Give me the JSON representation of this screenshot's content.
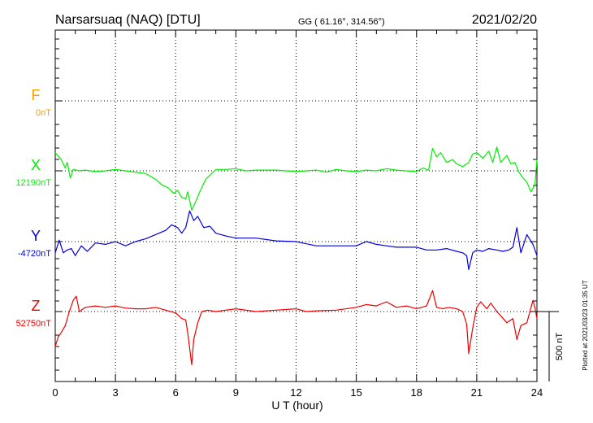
{
  "chart_data": {
    "type": "line",
    "title": "Narsarsuaq (NAQ)  [DTU]",
    "coordinates": "GG ( 61.16°, 314.56°)",
    "date": "2021/02/20",
    "xlabel": "U T (hour)",
    "xlim": [
      0,
      24
    ],
    "x_ticks": [
      "0",
      "3",
      "6",
      "9",
      "12",
      "15",
      "18",
      "21",
      "24"
    ],
    "grid": true,
    "plotted_note": "Plotted at 2021/03/23 01:35 UT",
    "scale_label": "500 nT",
    "series": [
      {
        "name": "F",
        "baseline_label": "0nT",
        "color": "#f5a000",
        "draw": false,
        "x": [],
        "y": []
      },
      {
        "name": "X",
        "baseline_label": "12190nT",
        "color": "#00ee00",
        "draw": true,
        "x": [
          0,
          0.3,
          0.5,
          0.6,
          0.75,
          0.9,
          1.2,
          1.5,
          2,
          2.5,
          3,
          3.5,
          4,
          4.5,
          5,
          5.3,
          5.6,
          5.9,
          6.1,
          6.3,
          6.5,
          6.6,
          6.8,
          7,
          7.2,
          7.5,
          7.8,
          8,
          8.5,
          9,
          9.5,
          10,
          11,
          12,
          12.5,
          13,
          13.5,
          14,
          14.5,
          15,
          15.5,
          16,
          16.5,
          17,
          17.5,
          18,
          18.3,
          18.6,
          18.8,
          19,
          19.2,
          19.5,
          19.8,
          20,
          20.3,
          20.6,
          20.8,
          21,
          21.3,
          21.6,
          21.8,
          22,
          22.2,
          22.5,
          22.7,
          22.9,
          23.1,
          23.3,
          23.5,
          23.7,
          23.9,
          24
        ],
        "y": [
          130,
          80,
          20,
          60,
          -50,
          10,
          0,
          5,
          -5,
          0,
          10,
          0,
          -10,
          -20,
          -60,
          -100,
          -120,
          -160,
          -140,
          -190,
          -200,
          -150,
          -280,
          -220,
          -150,
          -60,
          -20,
          10,
          10,
          15,
          0,
          5,
          5,
          -5,
          0,
          5,
          -10,
          10,
          0,
          -5,
          5,
          0,
          15,
          5,
          0,
          -5,
          20,
          5,
          160,
          100,
          130,
          60,
          80,
          50,
          30,
          60,
          120,
          130,
          90,
          140,
          60,
          170,
          60,
          110,
          50,
          60,
          -10,
          -50,
          -80,
          -150,
          -100,
          80
        ]
      },
      {
        "name": "Y",
        "baseline_label": "-4720nT",
        "color": "#0000dd",
        "draw": true,
        "x": [
          0,
          0.2,
          0.4,
          0.6,
          0.8,
          1,
          1.3,
          1.6,
          2,
          2.5,
          3,
          3.5,
          4,
          4.5,
          5,
          5.5,
          5.8,
          6.1,
          6.3,
          6.5,
          6.7,
          6.9,
          7.1,
          7.4,
          7.7,
          8,
          8.5,
          9,
          10,
          11,
          12,
          13,
          14,
          15,
          15.5,
          16,
          16.5,
          17,
          18,
          18.5,
          19,
          19.5,
          20,
          20.3,
          20.5,
          20.6,
          20.8,
          21,
          21.3,
          21.6,
          22,
          22.3,
          22.6,
          22.8,
          23,
          23.2,
          23.5,
          23.8,
          24
        ],
        "y": [
          -80,
          10,
          -80,
          -60,
          -50,
          -100,
          -30,
          -70,
          -10,
          -20,
          0,
          -30,
          0,
          20,
          50,
          80,
          120,
          100,
          60,
          100,
          220,
          150,
          180,
          100,
          110,
          60,
          40,
          25,
          25,
          5,
          0,
          -30,
          -30,
          -30,
          0,
          -20,
          -30,
          -40,
          -40,
          -60,
          -60,
          -50,
          -70,
          -80,
          -100,
          -200,
          -80,
          -60,
          -70,
          -50,
          -60,
          -70,
          -60,
          -40,
          100,
          -80,
          50,
          -20,
          -100
        ]
      },
      {
        "name": "Z",
        "baseline_label": "52750nT",
        "color": "#ee0000",
        "draw": true,
        "x": [
          0,
          0.15,
          0.3,
          0.5,
          0.7,
          0.9,
          1.05,
          1.2,
          1.5,
          2,
          2.5,
          3,
          3.5,
          4,
          4.5,
          5,
          5.5,
          6,
          6.3,
          6.5,
          6.6,
          6.8,
          6.9,
          7.1,
          7.3,
          7.6,
          8,
          9,
          10,
          11,
          12,
          12.5,
          13,
          14,
          15,
          15.5,
          16,
          16.5,
          17,
          17.5,
          18,
          18.5,
          18.8,
          19,
          19.3,
          19.6,
          20,
          20.3,
          20.5,
          20.6,
          20.8,
          21,
          21.2,
          21.5,
          21.7,
          22,
          22.2,
          22.5,
          22.8,
          23,
          23.2,
          23.5,
          23.8,
          23.9,
          24
        ],
        "y": [
          -250,
          -180,
          -150,
          -100,
          0,
          80,
          110,
          0,
          30,
          40,
          30,
          40,
          25,
          20,
          20,
          30,
          10,
          -10,
          -50,
          -60,
          -150,
          -380,
          -200,
          -80,
          0,
          10,
          0,
          20,
          0,
          10,
          20,
          0,
          5,
          10,
          30,
          50,
          40,
          70,
          30,
          40,
          20,
          40,
          150,
          30,
          20,
          30,
          20,
          0,
          -90,
          -300,
          -120,
          30,
          70,
          20,
          60,
          0,
          -30,
          -80,
          -50,
          -200,
          -100,
          -80,
          80,
          30,
          -50
        ]
      }
    ]
  }
}
